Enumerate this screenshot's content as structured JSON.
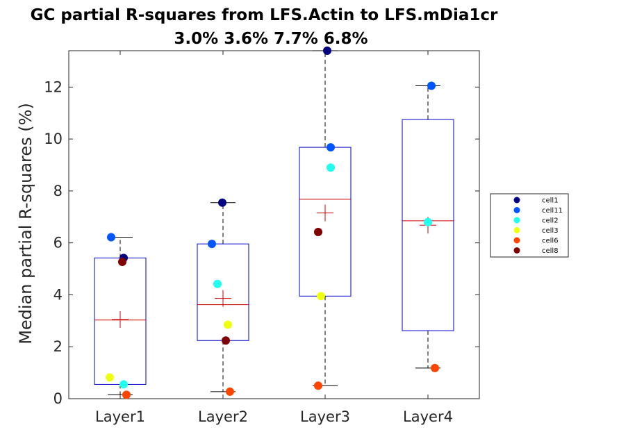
{
  "chart_data": {
    "type": "box",
    "title": "GC partial R-squares from LFS.Actin to LFS.mDia1cr",
    "subtitle": "3.0% 3.6% 7.7% 6.8%",
    "xlabel": "",
    "ylabel": "Median partial R-squares (%)",
    "ylim": [
      0,
      13.4
    ],
    "yticks": [
      0,
      2,
      4,
      6,
      8,
      10,
      12
    ],
    "categories": [
      "Layer1",
      "Layer2",
      "Layer3",
      "Layer4"
    ],
    "boxes": [
      {
        "q1": 0.55,
        "median": 3.03,
        "q3": 5.42,
        "mean": 3.05,
        "whisker_low": 0.15,
        "whisker_high": 6.22
      },
      {
        "q1": 2.24,
        "median": 3.62,
        "q3": 5.96,
        "mean": 3.86,
        "whisker_low": 0.27,
        "whisker_high": 7.55
      },
      {
        "q1": 3.95,
        "median": 7.68,
        "q3": 9.68,
        "mean": 7.15,
        "whisker_low": 0.5,
        "whisker_high": 13.4
      },
      {
        "q1": 2.62,
        "median": 6.85,
        "q3": 10.75,
        "mean": 6.68,
        "whisker_low": 1.18,
        "whisker_high": 12.05
      }
    ],
    "series": [
      {
        "name": "cell1",
        "color": "#000080",
        "values": [
          5.42,
          7.55,
          13.4,
          null
        ]
      },
      {
        "name": "cell11",
        "color": "#0055ff",
        "values": [
          6.22,
          5.96,
          9.68,
          12.05
        ]
      },
      {
        "name": "cell2",
        "color": "#22ffee",
        "values": [
          0.55,
          4.42,
          8.9,
          6.8
        ]
      },
      {
        "name": "cell3",
        "color": "#eeff11",
        "values": [
          0.82,
          2.85,
          3.95,
          null
        ]
      },
      {
        "name": "cell6",
        "color": "#ff4400",
        "values": [
          0.15,
          0.27,
          0.5,
          1.18
        ]
      },
      {
        "name": "cell8",
        "color": "#800000",
        "values": [
          5.27,
          2.24,
          6.42,
          null
        ]
      }
    ],
    "legend_position": "right",
    "grid": false,
    "colors": {
      "box": "#0000cc",
      "median": "#cc0000",
      "mean": "#cc0000",
      "whisker": "#000000"
    }
  }
}
